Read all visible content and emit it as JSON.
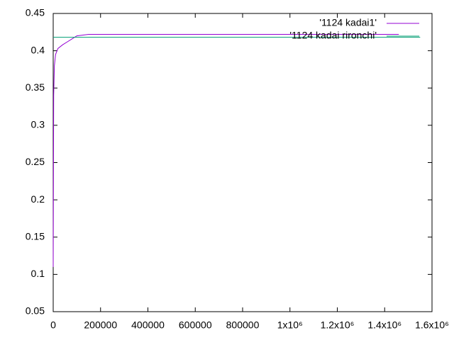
{
  "chart_data": {
    "type": "line",
    "series": [
      {
        "name": "'1124 kadai1'",
        "color": "#9400d3",
        "x": [
          0,
          2000,
          5000,
          10000,
          20000,
          40000,
          60000,
          80000,
          100000,
          150000,
          1460000
        ],
        "values": [
          0.11,
          0.34,
          0.38,
          0.395,
          0.403,
          0.408,
          0.412,
          0.416,
          0.42,
          0.422,
          0.422
        ]
      },
      {
        "name": "'1124 kadai rironchi'",
        "color": "#009e73",
        "x": [
          0,
          1550000
        ],
        "values": [
          0.418,
          0.418
        ]
      }
    ],
    "xlim": [
      0,
      1600000
    ],
    "xticks": [
      0,
      200000,
      400000,
      600000,
      800000,
      {
        "value": 1000000,
        "label": "1x10⁶"
      },
      {
        "value": 1200000,
        "label": "1.2x10⁶"
      },
      {
        "value": 1400000,
        "label": "1.4x10⁶"
      },
      {
        "value": 1600000,
        "label": "1.6x10⁶"
      }
    ],
    "ylim": [
      0.05,
      0.45
    ],
    "yticks": [
      0.05,
      0.1,
      0.15,
      0.2,
      0.25,
      0.3,
      0.35,
      0.4,
      0.45
    ],
    "legend": "top-right"
  }
}
